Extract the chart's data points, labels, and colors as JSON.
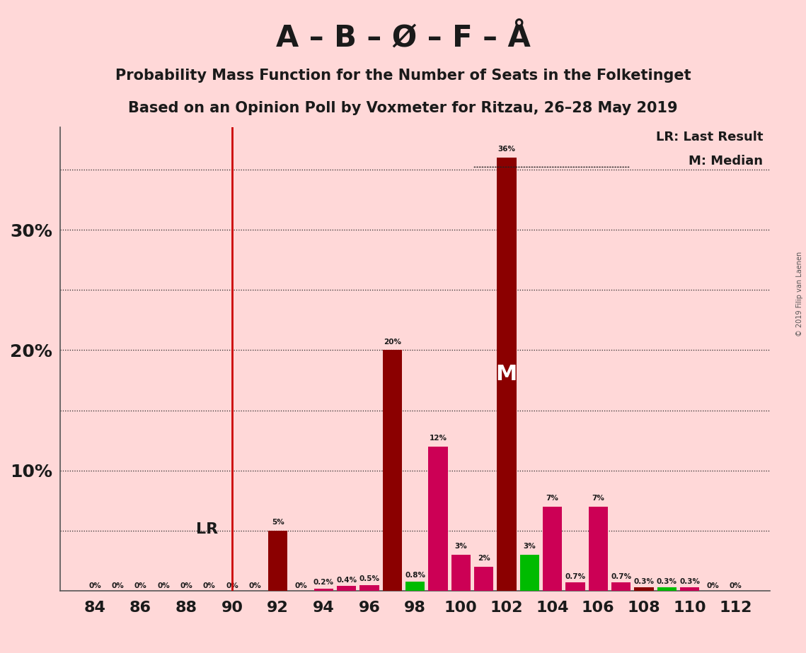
{
  "title1": "A – B – Ø – F – Å",
  "title2": "Probability Mass Function for the Number of Seats in the Folketinget",
  "title3": "Based on an Opinion Poll by Voxmeter for Ritzau, 26–28 May 2019",
  "copyright": "© 2019 Filip van Laenen",
  "seats": [
    84,
    85,
    86,
    87,
    88,
    89,
    90,
    91,
    92,
    93,
    94,
    95,
    96,
    97,
    98,
    99,
    100,
    101,
    102,
    103,
    104,
    105,
    106,
    107,
    108,
    109,
    110,
    111,
    112
  ],
  "values": [
    0.0,
    0.0,
    0.0,
    0.0,
    0.0,
    0.0,
    0.0,
    0.0,
    5.0,
    0.0,
    0.2,
    0.4,
    0.5,
    20.0,
    0.8,
    12.0,
    3.0,
    2.0,
    36.0,
    3.0,
    7.0,
    0.7,
    7.0,
    0.7,
    0.3,
    0.3,
    0.3,
    0.0,
    0.0
  ],
  "colors": [
    "#8B0000",
    "#8B0000",
    "#8B0000",
    "#8B0000",
    "#8B0000",
    "#8B0000",
    "#8B0000",
    "#8B0000",
    "#8B0000",
    "#8B0000",
    "#CC0055",
    "#CC0055",
    "#CC0055",
    "#8B0000",
    "#00BB00",
    "#CC0055",
    "#CC0055",
    "#CC0055",
    "#8B0000",
    "#00BB00",
    "#CC0055",
    "#CC0055",
    "#CC0055",
    "#CC0055",
    "#8B0000",
    "#00BB00",
    "#CC0055",
    "#CC0055",
    "#8B0000"
  ],
  "labels": [
    "0%",
    "0%",
    "0%",
    "0%",
    "0%",
    "0%",
    "0%",
    "0%",
    "5%",
    "0%",
    "0.2%",
    "0.4%",
    "0.5%",
    "20%",
    "0.8%",
    "12%",
    "3%",
    "2%",
    "36%",
    "3%",
    "7%",
    "0.7%",
    "7%",
    "0.7%",
    "0.3%",
    "0.3%",
    "0.3%",
    "0%",
    "0%"
  ],
  "show_label": [
    true,
    true,
    true,
    true,
    true,
    true,
    true,
    true,
    true,
    true,
    true,
    true,
    true,
    true,
    true,
    true,
    true,
    true,
    true,
    true,
    true,
    true,
    true,
    true,
    true,
    true,
    true,
    true,
    true
  ],
  "lr_seat": 90,
  "median_seat": 102,
  "background_color": "#FFD8D8",
  "lr_line_color": "#CC0000",
  "xlim": [
    82.5,
    113.5
  ],
  "ylim": [
    0,
    38.5
  ]
}
